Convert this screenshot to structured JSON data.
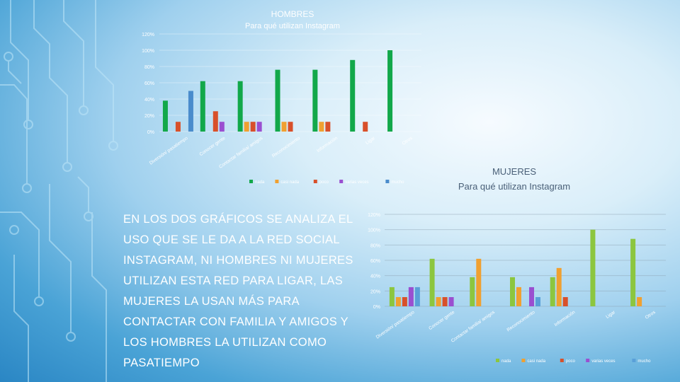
{
  "slide_text": "EN LOS DOS GRÁFICOS SE ANALIZA EL USO QUE SE LE DA A LA RED SOCIAL INSTAGRAM, NI HOMBRES NI MUJERES UTILIZAN ESTA RED PARA LIGAR, LAS MUJERES LA USAN MÁS PARA CONTACTAR CON FAMILIA Y AMIGOS Y LOS HOMBRES LA UTILIZAN COMO PASATIEMPO",
  "chart_data": [
    {
      "type": "bar",
      "title": "HOMBRES",
      "subtitle": "Para qué utilizan Instagram",
      "ylim": [
        0,
        120
      ],
      "yticks": [
        "0%",
        "20%",
        "40%",
        "60%",
        "80%",
        "100%",
        "120%"
      ],
      "categories": [
        "Diversión/ pasatiempo",
        "Conocer gente",
        "Contactar familia/ amigos",
        "Reconocimiento",
        "Información",
        "Ligar",
        "Otros"
      ],
      "legend_position": "bottom",
      "grid": true,
      "series": [
        {
          "name": "nada",
          "color": "#12a84a",
          "values": [
            38,
            62,
            62,
            76,
            76,
            88,
            100
          ]
        },
        {
          "name": "casi nada",
          "color": "#f0a030",
          "values": [
            0,
            0,
            12,
            12,
            12,
            0,
            0
          ]
        },
        {
          "name": "poco",
          "color": "#d8502a",
          "values": [
            12,
            25,
            12,
            12,
            12,
            12,
            0
          ]
        },
        {
          "name": "varias veces",
          "color": "#9a4fd0",
          "values": [
            0,
            12,
            12,
            0,
            0,
            0,
            0
          ]
        },
        {
          "name": "mucho",
          "color": "#4a8ccc",
          "values": [
            50,
            0,
            0,
            0,
            0,
            0,
            0
          ]
        }
      ]
    },
    {
      "type": "bar",
      "title": "MUJERES",
      "subtitle": "Para qué utilizan Instagram",
      "ylim": [
        0,
        120
      ],
      "yticks": [
        "0%",
        "20%",
        "40%",
        "60%",
        "80%",
        "100%",
        "120%"
      ],
      "categories": [
        "Diversión/ pasatiempo",
        "Conocer gente",
        "Contactar familia/ amigos",
        "Reconocimiento",
        "Información",
        "Ligar",
        "Otros"
      ],
      "legend_position": "bottom",
      "grid": true,
      "series": [
        {
          "name": "nada",
          "color": "#8cc63f",
          "values": [
            25,
            62,
            38,
            38,
            38,
            100,
            88
          ]
        },
        {
          "name": "casi nada",
          "color": "#f0a030",
          "values": [
            12,
            12,
            62,
            25,
            50,
            0,
            12
          ]
        },
        {
          "name": "poco",
          "color": "#d8502a",
          "values": [
            12,
            12,
            0,
            0,
            12,
            0,
            0
          ]
        },
        {
          "name": "varias veces",
          "color": "#9a4fd0",
          "values": [
            25,
            12,
            0,
            25,
            0,
            0,
            0
          ]
        },
        {
          "name": "mucho",
          "color": "#5aa0d8",
          "values": [
            25,
            0,
            0,
            12,
            0,
            0,
            0
          ]
        }
      ]
    }
  ]
}
